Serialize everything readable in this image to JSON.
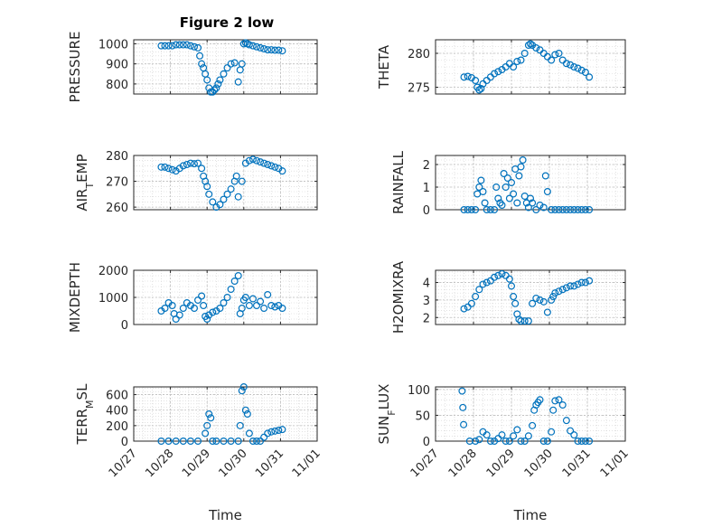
{
  "figure": {
    "title": "Figure 2 low",
    "marker_color": "#0072BD",
    "grid": "on (major + minor, dotted)"
  },
  "chart_data": [
    {
      "type": "scatter",
      "ylabel": "PRESSURE",
      "xlabel": "",
      "title": "Figure 2 low",
      "ylim": [
        750,
        1020
      ],
      "yticks": [
        800,
        900,
        1000
      ],
      "ytick_labels": [
        "800",
        "900",
        "1000"
      ],
      "xlim": [
        27.0,
        32.0
      ],
      "x": [
        27.75,
        27.85,
        27.95,
        28.05,
        28.15,
        28.25,
        28.35,
        28.45,
        28.55,
        28.65,
        28.75,
        28.8,
        28.85,
        28.9,
        28.95,
        29.0,
        29.05,
        29.1,
        29.15,
        29.2,
        29.25,
        29.3,
        29.35,
        29.45,
        29.55,
        29.65,
        29.75,
        29.85,
        29.9,
        29.95,
        30.0,
        30.05,
        30.1,
        30.15,
        30.25,
        30.35,
        30.45,
        30.55,
        30.65,
        30.75,
        30.85,
        30.95,
        31.05
      ],
      "y": [
        990,
        990,
        990,
        990,
        995,
        995,
        995,
        995,
        990,
        985,
        980,
        940,
        900,
        880,
        850,
        820,
        780,
        760,
        760,
        770,
        780,
        800,
        820,
        850,
        880,
        900,
        905,
        810,
        870,
        900,
        1000,
        1005,
        1000,
        995,
        990,
        985,
        980,
        975,
        970,
        970,
        968,
        968,
        965
      ]
    },
    {
      "type": "scatter",
      "ylabel": "THETA",
      "xlabel": "",
      "ylim": [
        274,
        282
      ],
      "yticks": [
        275,
        280
      ],
      "ytick_labels": [
        "275",
        "280"
      ],
      "xlim": [
        27.0,
        32.0
      ],
      "x": [
        27.75,
        27.85,
        27.95,
        28.05,
        28.1,
        28.15,
        28.2,
        28.25,
        28.35,
        28.45,
        28.55,
        28.65,
        28.75,
        28.85,
        28.95,
        29.05,
        29.15,
        29.25,
        29.35,
        29.45,
        29.5,
        29.55,
        29.65,
        29.75,
        29.85,
        29.95,
        30.05,
        30.15,
        30.25,
        30.35,
        30.45,
        30.55,
        30.65,
        30.75,
        30.85,
        30.95,
        31.05
      ],
      "y": [
        276.5,
        276.6,
        276.4,
        276.0,
        275.0,
        274.6,
        274.8,
        275.5,
        276.0,
        276.5,
        277.0,
        277.3,
        277.6,
        278.0,
        278.5,
        278.0,
        278.8,
        279.0,
        280.0,
        281.2,
        281.4,
        281.2,
        280.8,
        280.5,
        280.0,
        279.5,
        279.0,
        279.8,
        280.0,
        279.0,
        278.5,
        278.3,
        278.0,
        277.8,
        277.5,
        277.2,
        276.5
      ]
    },
    {
      "type": "scatter",
      "ylabel": "AIR_TEMP",
      "xlabel": "",
      "ylim": [
        259,
        280
      ],
      "yticks": [
        260,
        270,
        280
      ],
      "ytick_labels": [
        "260",
        "270",
        "280"
      ],
      "xlim": [
        27.0,
        32.0
      ],
      "x": [
        27.75,
        27.85,
        27.95,
        28.05,
        28.15,
        28.25,
        28.35,
        28.45,
        28.55,
        28.65,
        28.75,
        28.85,
        28.9,
        28.95,
        29.0,
        29.05,
        29.15,
        29.25,
        29.35,
        29.45,
        29.55,
        29.65,
        29.75,
        29.8,
        29.85,
        29.95,
        30.05,
        30.15,
        30.25,
        30.35,
        30.45,
        30.55,
        30.65,
        30.75,
        30.85,
        30.95,
        31.05
      ],
      "y": [
        275.5,
        275.5,
        275.0,
        274.5,
        274.0,
        275.0,
        276.0,
        276.5,
        277.0,
        276.8,
        277.0,
        275.0,
        272.0,
        270.0,
        268.0,
        265.0,
        262.0,
        260.0,
        261.0,
        263.0,
        265.0,
        267.0,
        270.0,
        272.0,
        264.0,
        270.0,
        277.0,
        278.0,
        278.5,
        278.0,
        277.5,
        277.0,
        276.5,
        276.0,
        275.5,
        275.0,
        274.0
      ]
    },
    {
      "type": "scatter",
      "ylabel": "RAINFALL",
      "xlabel": "",
      "ylim": [
        0,
        2.4
      ],
      "yticks": [
        0,
        1,
        2
      ],
      "ytick_labels": [
        "0",
        "1",
        "2"
      ],
      "xlim": [
        27.0,
        32.0
      ],
      "x": [
        27.75,
        27.85,
        27.95,
        28.05,
        28.1,
        28.15,
        28.2,
        28.25,
        28.3,
        28.35,
        28.45,
        28.55,
        28.6,
        28.65,
        28.7,
        28.75,
        28.8,
        28.85,
        28.9,
        28.95,
        29.0,
        29.05,
        29.1,
        29.15,
        29.2,
        29.25,
        29.3,
        29.35,
        29.4,
        29.45,
        29.5,
        29.55,
        29.65,
        29.75,
        29.85,
        29.9,
        29.95,
        30.05,
        30.15,
        30.25,
        30.35,
        30.45,
        30.55,
        30.65,
        30.75,
        30.85,
        30.95,
        31.05
      ],
      "y": [
        0,
        0,
        0,
        0,
        0.7,
        1.0,
        1.3,
        0.8,
        0.3,
        0,
        0,
        0,
        1.0,
        0.5,
        0.3,
        0.2,
        1.6,
        1.0,
        1.4,
        0.5,
        1.2,
        0.7,
        1.8,
        0.3,
        1.5,
        1.9,
        2.2,
        0.6,
        0.3,
        0.1,
        0.5,
        0.3,
        0,
        0.2,
        0.1,
        1.5,
        0.8,
        0,
        0,
        0,
        0,
        0,
        0,
        0,
        0,
        0,
        0,
        0
      ]
    },
    {
      "type": "scatter",
      "ylabel": "MIXDEPTH",
      "xlabel": "",
      "ylim": [
        0,
        2000
      ],
      "yticks": [
        0,
        1000,
        2000
      ],
      "ytick_labels": [
        "0",
        "1000",
        "2000"
      ],
      "xlim": [
        27.0,
        32.0
      ],
      "x": [
        27.75,
        27.85,
        27.95,
        28.05,
        28.1,
        28.15,
        28.25,
        28.35,
        28.45,
        28.55,
        28.65,
        28.75,
        28.85,
        28.9,
        28.95,
        29.0,
        29.05,
        29.15,
        29.25,
        29.35,
        29.45,
        29.55,
        29.65,
        29.75,
        29.85,
        29.9,
        29.95,
        30.0,
        30.05,
        30.15,
        30.25,
        30.35,
        30.45,
        30.55,
        30.65,
        30.75,
        30.85,
        30.95,
        31.05
      ],
      "y": [
        500,
        600,
        800,
        700,
        400,
        200,
        350,
        600,
        800,
        700,
        600,
        900,
        1050,
        700,
        300,
        200,
        350,
        450,
        500,
        600,
        800,
        1000,
        1300,
        1600,
        1800,
        400,
        600,
        900,
        1000,
        700,
        950,
        700,
        850,
        600,
        1100,
        700,
        650,
        700,
        600
      ]
    },
    {
      "type": "scatter",
      "ylabel": "H2OMIXRA",
      "xlabel": "",
      "ylim": [
        1.6,
        4.7
      ],
      "yticks": [
        2,
        3,
        4
      ],
      "ytick_labels": [
        "2",
        "3",
        "4"
      ],
      "xlim": [
        27.0,
        32.0
      ],
      "x": [
        27.75,
        27.85,
        27.95,
        28.05,
        28.15,
        28.25,
        28.35,
        28.45,
        28.55,
        28.65,
        28.75,
        28.85,
        28.95,
        29.0,
        29.05,
        29.1,
        29.15,
        29.2,
        29.25,
        29.35,
        29.45,
        29.55,
        29.65,
        29.75,
        29.85,
        29.95,
        30.05,
        30.1,
        30.15,
        30.25,
        30.35,
        30.45,
        30.55,
        30.65,
        30.75,
        30.85,
        30.95,
        31.05
      ],
      "y": [
        2.5,
        2.6,
        2.8,
        3.2,
        3.6,
        3.9,
        4.0,
        4.1,
        4.3,
        4.4,
        4.5,
        4.4,
        4.2,
        3.8,
        3.2,
        2.8,
        2.2,
        1.9,
        1.8,
        1.8,
        1.8,
        2.8,
        3.1,
        3.0,
        2.9,
        2.3,
        3.0,
        3.2,
        3.4,
        3.5,
        3.6,
        3.7,
        3.8,
        3.8,
        3.9,
        4.0,
        4.0,
        4.1
      ]
    },
    {
      "type": "scatter",
      "ylabel": "TERR_MSL",
      "xlabel": "Time",
      "ylim": [
        0,
        700
      ],
      "yticks": [
        0,
        200,
        400,
        600
      ],
      "ytick_labels": [
        "0",
        "200",
        "400",
        "600"
      ],
      "xlim": [
        27.0,
        32.0
      ],
      "x": [
        27.75,
        27.95,
        28.15,
        28.35,
        28.55,
        28.75,
        28.95,
        29.0,
        29.05,
        29.1,
        29.15,
        29.25,
        29.45,
        29.65,
        29.85,
        29.9,
        29.95,
        30.0,
        30.05,
        30.1,
        30.15,
        30.25,
        30.35,
        30.45,
        30.55,
        30.65,
        30.75,
        30.85,
        30.95,
        31.05
      ],
      "y": [
        0,
        0,
        0,
        0,
        0,
        0,
        100,
        200,
        350,
        300,
        0,
        0,
        0,
        0,
        0,
        200,
        650,
        700,
        400,
        350,
        100,
        0,
        0,
        0,
        50,
        100,
        120,
        130,
        140,
        150
      ]
    },
    {
      "type": "scatter",
      "ylabel": "SUN_FLUX",
      "xlabel": "Time",
      "ylim": [
        0,
        105
      ],
      "yticks": [
        0,
        50,
        100
      ],
      "ytick_labels": [
        "0",
        "50",
        "100"
      ],
      "xlim": [
        27.0,
        32.0
      ],
      "x": [
        27.7,
        27.72,
        27.74,
        27.9,
        28.05,
        28.15,
        28.25,
        28.35,
        28.45,
        28.55,
        28.65,
        28.75,
        28.85,
        28.95,
        29.05,
        29.15,
        29.25,
        29.35,
        29.45,
        29.55,
        29.6,
        29.65,
        29.7,
        29.75,
        29.85,
        29.95,
        30.05,
        30.1,
        30.15,
        30.25,
        30.35,
        30.45,
        30.55,
        30.65,
        30.75,
        30.85,
        30.95,
        31.05
      ],
      "y": [
        97,
        65,
        32,
        0,
        0,
        3,
        18,
        12,
        0,
        0,
        5,
        12,
        0,
        0,
        10,
        22,
        0,
        0,
        10,
        30,
        60,
        70,
        75,
        80,
        0,
        0,
        18,
        60,
        78,
        80,
        70,
        40,
        20,
        12,
        0,
        0,
        0,
        0
      ]
    }
  ],
  "x_axis": {
    "ticks": [
      27,
      28,
      29,
      30,
      31,
      32
    ],
    "tick_labels": [
      "10/27",
      "10/28",
      "10/29",
      "10/30",
      "10/31",
      "11/01"
    ]
  }
}
